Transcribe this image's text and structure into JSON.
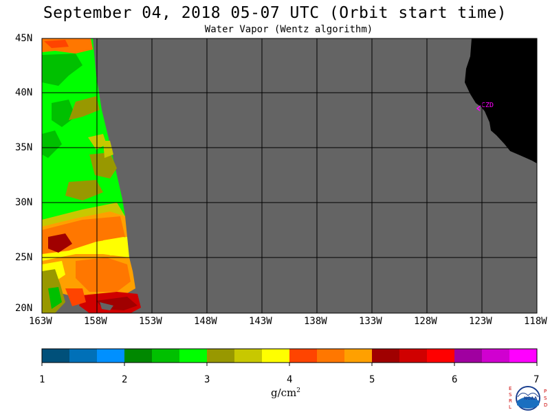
{
  "title": "September 04, 2018  05-07 UTC  (Orbit start time)",
  "subtitle": "Water Vapor (Wentz algorithm)",
  "latitude_labels": [
    "45N",
    "40N",
    "35N",
    "30N",
    "25N",
    "20N"
  ],
  "longitude_labels": [
    "163W",
    "158W",
    "153W",
    "148W",
    "143W",
    "138W",
    "133W",
    "128W",
    "123W",
    "118W"
  ],
  "station_label": "CZD",
  "colorbar": {
    "ticks": [
      "1",
      "2",
      "3",
      "4",
      "5",
      "6",
      "7"
    ],
    "units": "g/cm",
    "units_exponent": "2",
    "colors": [
      "#00507a",
      "#0070b8",
      "#0090ff",
      "#008800",
      "#00c000",
      "#00ff00",
      "#989800",
      "#c8c800",
      "#ffff00",
      "#ff4400",
      "#ff7700",
      "#ffa000",
      "#a00000",
      "#d00000",
      "#ff0000",
      "#a000a0",
      "#d000d0",
      "#ff00ff"
    ]
  },
  "colors": {
    "no_data": "#646464",
    "land": "#000000",
    "grid": "#000000",
    "station": "#ff00ff"
  },
  "logo": {
    "left_letters": "ESRL",
    "right_letters": "PSD",
    "center_text": "NOAA"
  }
}
